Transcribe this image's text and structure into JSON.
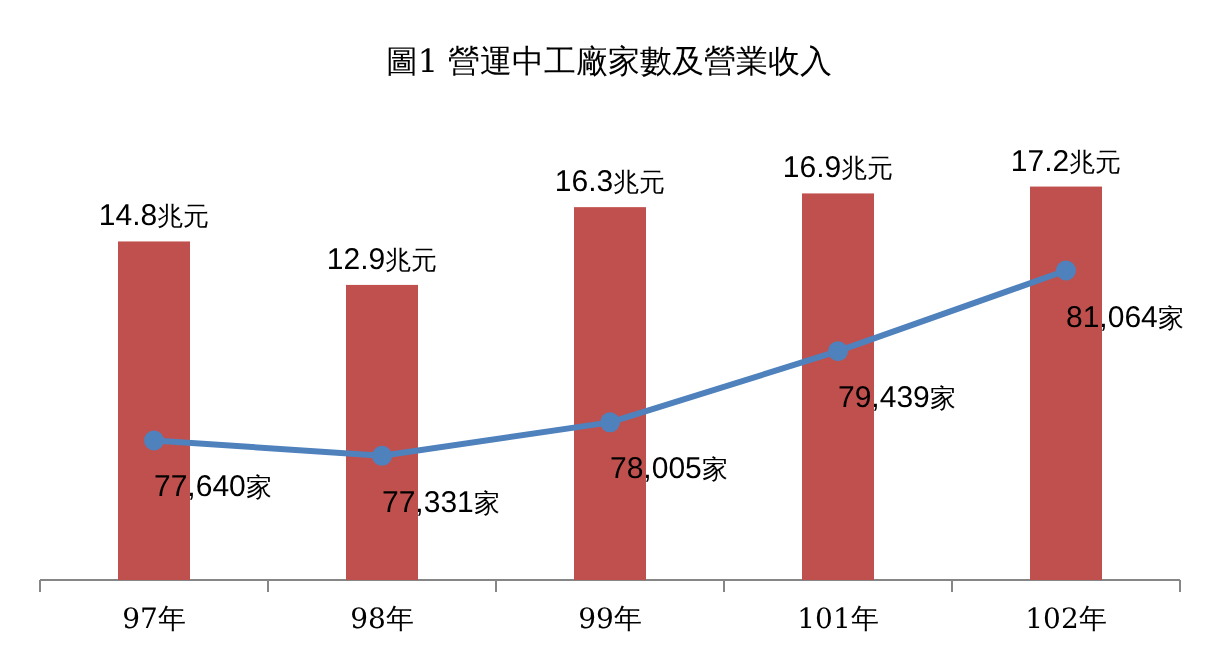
{
  "chart_data": {
    "type": "bar",
    "title": "圖1 營運中工廠家數及營業收入",
    "categories": [
      "97年",
      "98年",
      "99年",
      "101年",
      "102年"
    ],
    "tick_labels": "x",
    "series": [
      {
        "color": "#c0504d",
        "values": [
          14.8,
          12.9,
          16.3,
          16.9,
          17.2
        ],
        "value_labels": [
          "14.8兆元",
          "12.9兆元",
          "16.3兆元",
          "16.9兆元",
          "17.2兆元"
        ]
      },
      {
        "type": "line",
        "axis": "y2",
        "color": "#4f81bd",
        "marker": "circle",
        "values": [
          77640,
          77331,
          78005,
          79439,
          81064
        ],
        "value_labels": [
          "77,640家",
          "77,331家",
          "78,005家",
          "79,439家",
          "81,064家"
        ]
      }
    ]
  }
}
